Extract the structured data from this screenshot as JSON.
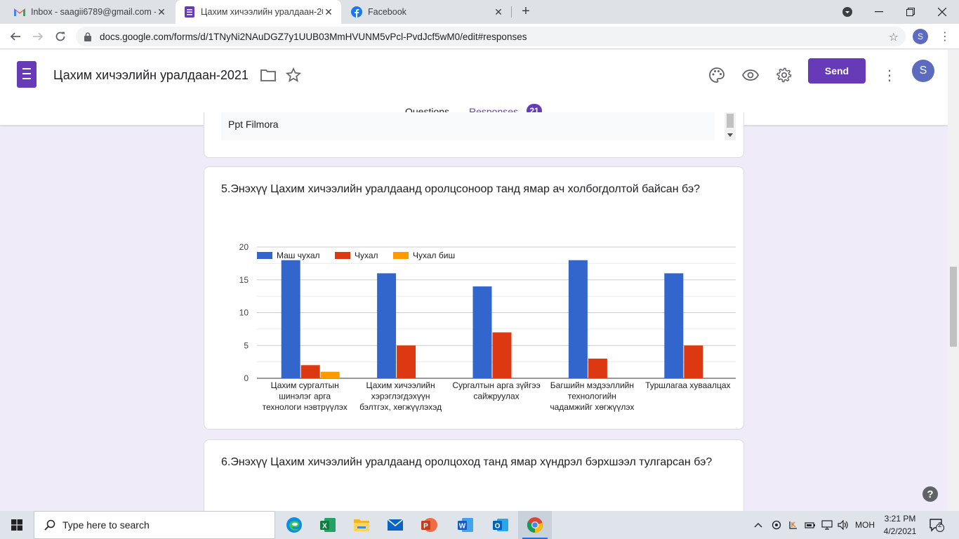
{
  "browser": {
    "tabs": [
      {
        "label": "Inbox - saagii6789@gmail.com -",
        "icon": "gmail-icon",
        "active": false
      },
      {
        "label": "Цахим хичээлийн уралдаан-2021",
        "icon": "google-forms-icon",
        "active": true
      },
      {
        "label": "Facebook",
        "icon": "facebook-icon",
        "active": false
      }
    ],
    "url": "docs.google.com/forms/d/1TNyNi2NAuDGZ7y1UUB03MmHVUNM5vPcl-PvdJcf5wM0/edit#responses",
    "profile_initial": "S"
  },
  "form": {
    "title": "Цахим хичээлийн уралдаан-2021",
    "send_label": "Send",
    "avatar_initial": "S",
    "tabs": {
      "questions": "Questions",
      "responses": "Responses",
      "responses_count": "21"
    },
    "accent": "#673ab7"
  },
  "previous_answer": {
    "text": "Ppt Filmora"
  },
  "question5": {
    "text": "5.Энэхүү Цахим хичээлийн уралдаанд оролцсоноор танд ямар ач холбогдолтой байсан бэ?"
  },
  "question6": {
    "text": "6.Энэхүү Цахим хичээлийн уралдаанд оролцоход танд ямар хүндрэл бэрхшээл тулгарсан бэ?"
  },
  "chart_data": {
    "type": "bar",
    "title": "",
    "xlabel": "",
    "ylabel": "",
    "ylim": [
      0,
      20
    ],
    "yticks": [
      "0",
      "5",
      "10",
      "15",
      "20"
    ],
    "grid": true,
    "legend_position": "top",
    "categories": [
      [
        "Цахим сургалтын",
        "шинэлэг арга",
        "технологи нэвтрүүлэх"
      ],
      [
        "Цахим хичээлийн",
        "хэрэглэгдэхүүн",
        "бэлтгэх, хөгжүүлэхэд"
      ],
      [
        "Сургалтын арга зүйгээ",
        "сайжруулах"
      ],
      [
        "Багшийн мэдээллийн",
        "технологийн",
        "чадамжийг хөгжүүлэх"
      ],
      [
        "Туршлагаа хуваалцах"
      ]
    ],
    "series": [
      {
        "name": "Маш чухал",
        "color": "#3366cc",
        "values": [
          18,
          16,
          14,
          18,
          16
        ]
      },
      {
        "name": "Чухал",
        "color": "#dc3912",
        "values": [
          2,
          5,
          7,
          3,
          5
        ]
      },
      {
        "name": "Чухал биш",
        "color": "#ff9900",
        "values": [
          1,
          0,
          0,
          0,
          0
        ]
      }
    ]
  },
  "taskbar": {
    "search_placeholder": "Type here to search",
    "apps": [
      "edge-icon",
      "excel-icon",
      "file-explorer-icon",
      "mail-icon",
      "powerpoint-icon",
      "word-icon",
      "outlook-icon",
      "chrome-icon"
    ],
    "language": "МОН",
    "time": "3:21 PM",
    "date": "4/2/2021",
    "notifications": "2"
  }
}
